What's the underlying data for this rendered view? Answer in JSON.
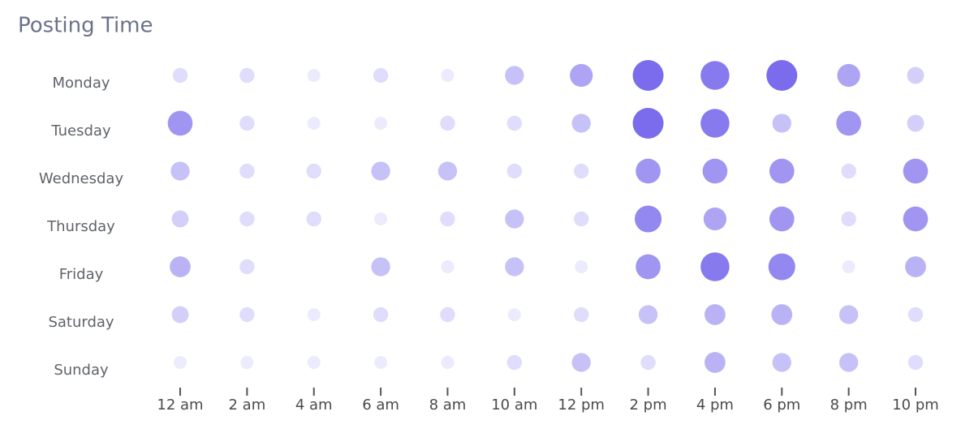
{
  "chart_data": {
    "type": "bubble-grid",
    "title": "Posting Time",
    "categories": [
      "12 am",
      "2 am",
      "4 am",
      "6 am",
      "8 am",
      "10 am",
      "12 pm",
      "2 pm",
      "4 pm",
      "6 pm",
      "8 pm",
      "10 pm"
    ],
    "rows": [
      "Monday",
      "Tuesday",
      "Wednesday",
      "Thursday",
      "Friday",
      "Saturday",
      "Sunday"
    ],
    "values": [
      [
        2,
        2,
        1,
        2,
        1,
        4,
        6,
        10,
        9,
        10,
        6,
        3
      ],
      [
        7,
        2,
        1,
        1,
        2,
        2,
        4,
        10,
        9,
        4,
        7,
        3
      ],
      [
        4,
        2,
        2,
        4,
        4,
        2,
        2,
        7,
        7,
        7,
        2,
        7
      ],
      [
        3,
        2,
        2,
        1,
        2,
        4,
        2,
        8,
        6,
        7,
        2,
        7
      ],
      [
        5,
        2,
        null,
        4,
        1,
        4,
        1,
        7,
        9,
        8,
        1,
        5
      ],
      [
        3,
        2,
        1,
        2,
        2,
        1,
        2,
        4,
        5,
        5,
        4,
        2
      ],
      [
        1,
        1,
        1,
        1,
        1,
        2,
        4,
        2,
        5,
        4,
        4,
        2
      ]
    ],
    "color_scale": [
      "#ecebfd",
      "#7a6cec"
    ]
  }
}
